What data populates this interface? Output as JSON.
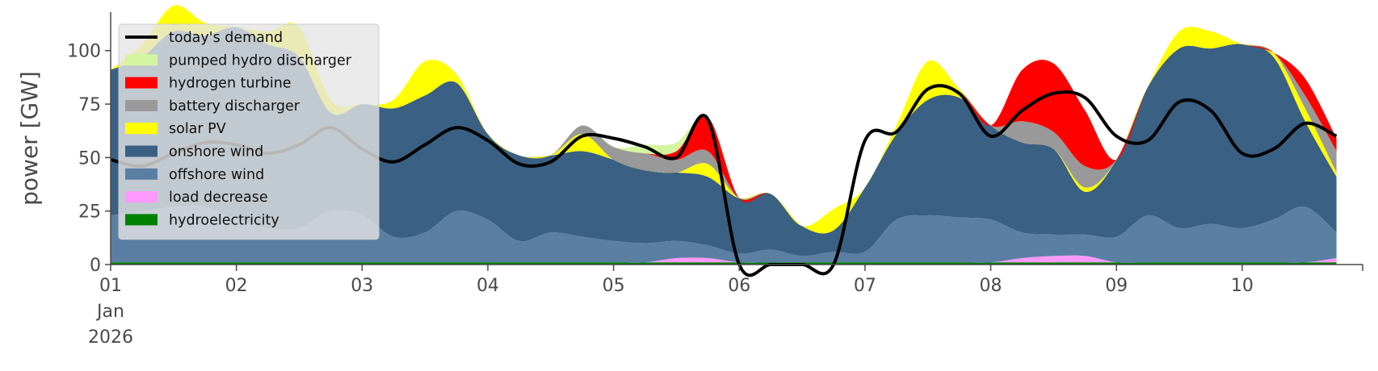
{
  "chart_data": {
    "type": "area",
    "title": "",
    "xlabel": "",
    "ylabel": "power [GW]",
    "ylim": [
      0,
      118
    ],
    "yticks": [
      0,
      25,
      50,
      75,
      100
    ],
    "x_date_start": "2026-01-01T00:00",
    "x_date_end": "2026-01-10T23:00",
    "xticks": [
      {
        "x": "2026-01-01",
        "label": "01",
        "sub": [
          "Jan",
          "2026"
        ]
      },
      {
        "x": "2026-01-02",
        "label": "02"
      },
      {
        "x": "2026-01-03",
        "label": "03"
      },
      {
        "x": "2026-01-04",
        "label": "04"
      },
      {
        "x": "2026-01-05",
        "label": "05"
      },
      {
        "x": "2026-01-06",
        "label": "06"
      },
      {
        "x": "2026-01-07",
        "label": "07"
      },
      {
        "x": "2026-01-08",
        "label": "08"
      },
      {
        "x": "2026-01-09",
        "label": "09"
      },
      {
        "x": "2026-01-10",
        "label": "10"
      }
    ],
    "grid": false,
    "legend_position": "top-left",
    "x": [
      "2026-01-01T00:00",
      "2026-01-01T06:00",
      "2026-01-01T12:00",
      "2026-01-01T18:00",
      "2026-01-02T00:00",
      "2026-01-02T06:00",
      "2026-01-02T12:00",
      "2026-01-02T18:00",
      "2026-01-03T00:00",
      "2026-01-03T06:00",
      "2026-01-03T12:00",
      "2026-01-03T18:00",
      "2026-01-04T00:00",
      "2026-01-04T06:00",
      "2026-01-04T12:00",
      "2026-01-04T18:00",
      "2026-01-05T00:00",
      "2026-01-05T06:00",
      "2026-01-05T12:00",
      "2026-01-05T18:00",
      "2026-01-06T00:00",
      "2026-01-06T06:00",
      "2026-01-06T12:00",
      "2026-01-06T18:00",
      "2026-01-07T00:00",
      "2026-01-07T06:00",
      "2026-01-07T12:00",
      "2026-01-07T18:00",
      "2026-01-08T00:00",
      "2026-01-08T06:00",
      "2026-01-08T12:00",
      "2026-01-08T18:00",
      "2026-01-09T00:00",
      "2026-01-09T06:00",
      "2026-01-09T12:00",
      "2026-01-09T18:00",
      "2026-01-10T00:00",
      "2026-01-10T06:00",
      "2026-01-10T12:00",
      "2026-01-10T18:00"
    ],
    "demand": {
      "name": "today's demand",
      "color": "#000000",
      "values": [
        49,
        46,
        52,
        57,
        56,
        52,
        56,
        64,
        54,
        48,
        56,
        64,
        58,
        47,
        48,
        60,
        59,
        55,
        50,
        68,
        0,
        0,
        0,
        0,
        58,
        62,
        82,
        80,
        60,
        72,
        80,
        78,
        60,
        58,
        76,
        72,
        52,
        54,
        66,
        60
      ]
    },
    "series": [
      {
        "name": "hydroelectricity",
        "color": "#008000",
        "values": [
          1,
          1,
          1,
          1,
          1,
          1,
          1,
          1,
          1,
          1,
          1,
          1,
          1,
          1,
          1,
          1,
          1,
          1,
          1,
          1,
          1,
          1,
          1,
          1,
          1,
          1,
          1,
          1,
          1,
          1,
          1,
          1,
          1,
          1,
          1,
          1,
          1,
          1,
          1,
          1
        ]
      },
      {
        "name": "load decrease",
        "color": "#ff99ff",
        "values": [
          0,
          0,
          0,
          0,
          0,
          0,
          0,
          0,
          0,
          0,
          0,
          0,
          0,
          0,
          0,
          0,
          0,
          0,
          2,
          2,
          0,
          0,
          0,
          0,
          0,
          0,
          0,
          0,
          0,
          2,
          3,
          3,
          0,
          0,
          0,
          0,
          0,
          0,
          0,
          2
        ]
      },
      {
        "name": "offshore wind",
        "color": "#5b7fa3",
        "values": [
          22,
          24,
          26,
          26,
          20,
          16,
          16,
          24,
          22,
          12,
          14,
          24,
          20,
          10,
          14,
          12,
          10,
          9,
          8,
          6,
          4,
          6,
          3,
          5,
          5,
          20,
          22,
          21,
          20,
          12,
          10,
          10,
          12,
          22,
          16,
          18,
          16,
          20,
          26,
          12
        ]
      },
      {
        "name": "onshore wind",
        "color": "#3a6083",
        "values": [
          68,
          72,
          82,
          80,
          90,
          86,
          80,
          46,
          52,
          60,
          64,
          60,
          40,
          40,
          36,
          40,
          38,
          34,
          32,
          32,
          26,
          26,
          14,
          10,
          30,
          40,
          54,
          56,
          44,
          42,
          40,
          20,
          36,
          60,
          84,
          82,
          86,
          76,
          40,
          26
        ]
      },
      {
        "name": "solar PV",
        "color": "#ffff00",
        "values": [
          0,
          6,
          12,
          6,
          0,
          6,
          14,
          6,
          0,
          4,
          16,
          4,
          0,
          0,
          0,
          8,
          0,
          0,
          0,
          6,
          0,
          0,
          0,
          10,
          0,
          4,
          18,
          4,
          0,
          0,
          0,
          2,
          0,
          0,
          8,
          8,
          0,
          2,
          6,
          2
        ]
      },
      {
        "name": "battery discharger",
        "color": "#999999",
        "values": [
          0,
          0,
          0,
          0,
          0,
          0,
          0,
          0,
          0,
          0,
          0,
          0,
          0,
          0,
          0,
          4,
          6,
          8,
          6,
          6,
          0,
          0,
          0,
          0,
          0,
          0,
          0,
          0,
          0,
          10,
          8,
          10,
          0,
          0,
          0,
          0,
          0,
          0,
          6,
          10
        ]
      },
      {
        "name": "hydrogen turbine",
        "color": "#ff0000",
        "values": [
          0,
          0,
          0,
          0,
          0,
          0,
          0,
          0,
          0,
          0,
          0,
          0,
          0,
          0,
          0,
          0,
          0,
          0,
          4,
          16,
          0,
          0,
          0,
          0,
          0,
          0,
          0,
          0,
          0,
          24,
          32,
          26,
          0,
          0,
          0,
          0,
          0,
          0,
          8,
          6
        ]
      },
      {
        "name": "pumped hydro discharger",
        "color": "#d4f5a0",
        "values": [
          0,
          0,
          0,
          0,
          0,
          0,
          0,
          0,
          0,
          0,
          0,
          0,
          0,
          0,
          0,
          0,
          0,
          4,
          4,
          0,
          0,
          0,
          0,
          0,
          0,
          0,
          0,
          0,
          0,
          0,
          0,
          0,
          0,
          0,
          0,
          0,
          0,
          0,
          0,
          0
        ]
      }
    ],
    "legend": [
      {
        "name": "today's demand",
        "color": "#000000",
        "kind": "line"
      },
      {
        "name": "pumped hydro discharger",
        "color": "#d4f5a0",
        "kind": "patch"
      },
      {
        "name": "hydrogen turbine",
        "color": "#ff0000",
        "kind": "patch"
      },
      {
        "name": "battery discharger",
        "color": "#999999",
        "kind": "patch"
      },
      {
        "name": "solar PV",
        "color": "#ffff00",
        "kind": "patch"
      },
      {
        "name": "onshore wind",
        "color": "#3a6083",
        "kind": "patch"
      },
      {
        "name": "offshore wind",
        "color": "#5b7fa3",
        "kind": "patch"
      },
      {
        "name": "load decrease",
        "color": "#ff99ff",
        "kind": "patch"
      },
      {
        "name": "hydroelectricity",
        "color": "#008000",
        "kind": "patch"
      }
    ]
  }
}
